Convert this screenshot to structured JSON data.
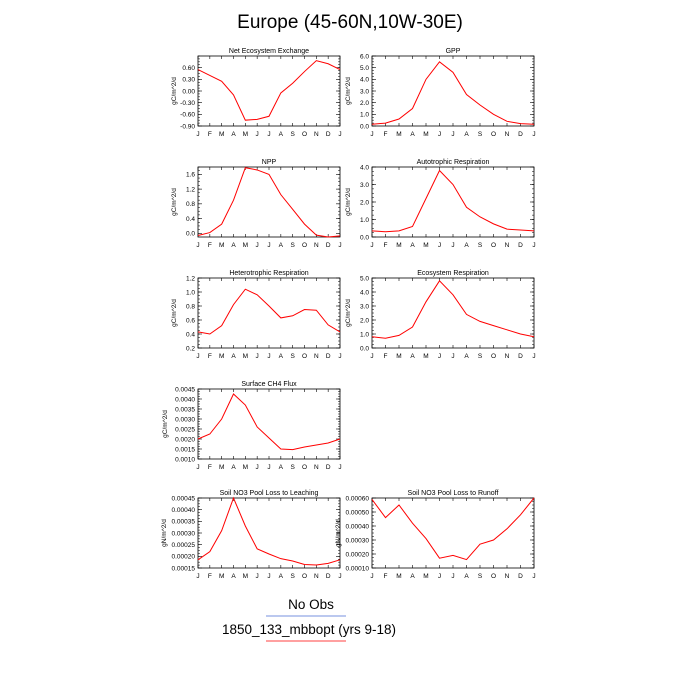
{
  "title": "Europe (45-60N,10W-30E)",
  "months": [
    "J",
    "F",
    "M",
    "A",
    "M",
    "J",
    "J",
    "A",
    "S",
    "O",
    "N",
    "D",
    "J"
  ],
  "colors": {
    "model": "#ff0000",
    "obs": "#4a6cd4",
    "axis": "#000000"
  },
  "legend": {
    "obs_label": "No Obs",
    "model_label": "1850_133_mbbopt (yrs 9-18)"
  },
  "chart_data": [
    {
      "type": "line",
      "title": "Net Ecosystem Exchange",
      "ylabel": "gC/m^2/d",
      "ylim": [
        -0.9,
        0.9
      ],
      "yticks": [
        -0.9,
        -0.6,
        -0.3,
        0.0,
        0.3,
        0.6
      ],
      "ytick_labels": [
        "-0.90",
        "-0.60",
        "-0.30",
        "0.00",
        "0.30",
        "0.60"
      ],
      "series": [
        {
          "values": [
            0.55,
            0.4,
            0.25,
            -0.1,
            -0.75,
            -0.73,
            -0.65,
            -0.05,
            0.2,
            0.5,
            0.78,
            0.7,
            0.55
          ]
        }
      ]
    },
    {
      "type": "line",
      "title": "GPP",
      "ylabel": "gC/m^2/d",
      "ylim": [
        0,
        6
      ],
      "yticks": [
        0,
        1,
        2,
        3,
        4,
        5,
        6
      ],
      "ytick_labels": [
        "0.0",
        "1.0",
        "2.0",
        "3.0",
        "4.0",
        "5.0",
        "6.0"
      ],
      "series": [
        {
          "values": [
            0.15,
            0.25,
            0.6,
            1.5,
            4.0,
            5.5,
            4.6,
            2.7,
            1.8,
            1.0,
            0.4,
            0.2,
            0.15
          ]
        }
      ]
    },
    {
      "type": "line",
      "title": "NPP",
      "ylabel": "gC/m^2/d",
      "ylim": [
        -0.1,
        1.8
      ],
      "yticks": [
        0.0,
        0.4,
        0.8,
        1.2,
        1.6
      ],
      "ytick_labels": [
        "0.0",
        "0.4",
        "0.8",
        "1.2",
        "1.6"
      ],
      "series": [
        {
          "values": [
            -0.06,
            0.02,
            0.25,
            0.9,
            1.78,
            1.72,
            1.6,
            1.05,
            0.65,
            0.25,
            -0.05,
            -0.1,
            -0.07
          ]
        }
      ]
    },
    {
      "type": "line",
      "title": "Autotrophic Respiration",
      "ylabel": "gC/m^2/d",
      "ylim": [
        0,
        4
      ],
      "yticks": [
        0,
        1,
        2,
        3,
        4
      ],
      "ytick_labels": [
        "0.0",
        "1.0",
        "2.0",
        "3.0",
        "4.0"
      ],
      "series": [
        {
          "values": [
            0.35,
            0.3,
            0.35,
            0.6,
            2.2,
            3.8,
            3.0,
            1.7,
            1.15,
            0.75,
            0.45,
            0.4,
            0.35
          ]
        }
      ]
    },
    {
      "type": "line",
      "title": "Heterotrophic Respiration",
      "ylabel": "gC/m^2/d",
      "ylim": [
        0.2,
        1.2
      ],
      "yticks": [
        0.2,
        0.4,
        0.6,
        0.8,
        1.0,
        1.2
      ],
      "ytick_labels": [
        "0.2",
        "0.4",
        "0.6",
        "0.8",
        "1.0",
        "1.2"
      ],
      "series": [
        {
          "values": [
            0.43,
            0.4,
            0.52,
            0.82,
            1.04,
            0.96,
            0.8,
            0.63,
            0.66,
            0.75,
            0.74,
            0.53,
            0.43
          ]
        }
      ]
    },
    {
      "type": "line",
      "title": "Ecosystem Respiration",
      "ylabel": "gC/m^2/d",
      "ylim": [
        0,
        5
      ],
      "yticks": [
        0,
        1,
        2,
        3,
        4,
        5
      ],
      "ytick_labels": [
        "0.0",
        "1.0",
        "2.0",
        "3.0",
        "4.0",
        "5.0"
      ],
      "series": [
        {
          "values": [
            0.8,
            0.7,
            0.9,
            1.5,
            3.3,
            4.8,
            3.8,
            2.4,
            1.9,
            1.6,
            1.3,
            1.0,
            0.8
          ]
        }
      ]
    },
    {
      "type": "line",
      "title": "Surface CH4 Flux",
      "ylabel": "gC/m^2/d",
      "ylim": [
        0.001,
        0.0045
      ],
      "yticks": [
        0.001,
        0.0015,
        0.002,
        0.0025,
        0.003,
        0.0035,
        0.004,
        0.0045
      ],
      "ytick_labels": [
        "0.0010",
        "0.0015",
        "0.0020",
        "0.0025",
        "0.0030",
        "0.0035",
        "0.0040",
        "0.0045"
      ],
      "series": [
        {
          "values": [
            0.002,
            0.00225,
            0.003,
            0.00425,
            0.0037,
            0.0026,
            0.00205,
            0.0015,
            0.00147,
            0.0016,
            0.0017,
            0.0018,
            0.002
          ]
        }
      ]
    },
    {
      "type": "line",
      "title": "Soil NO3 Pool Loss to Leaching",
      "ylabel": "gN/m^2/d",
      "ylim": [
        0.00015,
        0.00045
      ],
      "yticks": [
        0.00015,
        0.0002,
        0.00025,
        0.0003,
        0.00035,
        0.0004,
        0.00045
      ],
      "ytick_labels": [
        "0.00015",
        "0.00020",
        "0.00025",
        "0.00030",
        "0.00035",
        "0.00040",
        "0.00045"
      ],
      "series": [
        {
          "values": [
            0.000185,
            0.00022,
            0.00031,
            0.00045,
            0.00033,
            0.000232,
            0.00021,
            0.00019,
            0.00018,
            0.000165,
            0.000163,
            0.00017,
            0.000185
          ]
        }
      ]
    },
    {
      "type": "line",
      "title": "Soil NO3 Pool Loss to Runoff",
      "ylabel": "gN/m^2/d",
      "ylim": [
        0.0001,
        0.0006
      ],
      "yticks": [
        0.0001,
        0.0002,
        0.0003,
        0.0004,
        0.0005,
        0.0006
      ],
      "ytick_labels": [
        "0.00010",
        "0.00020",
        "0.00030",
        "0.00040",
        "0.00050",
        "0.00060"
      ],
      "series": [
        {
          "values": [
            0.00059,
            0.00046,
            0.00055,
            0.00042,
            0.00031,
            0.00017,
            0.00019,
            0.00016,
            0.00027,
            0.0003,
            0.00038,
            0.00048,
            0.0006
          ]
        }
      ]
    }
  ]
}
